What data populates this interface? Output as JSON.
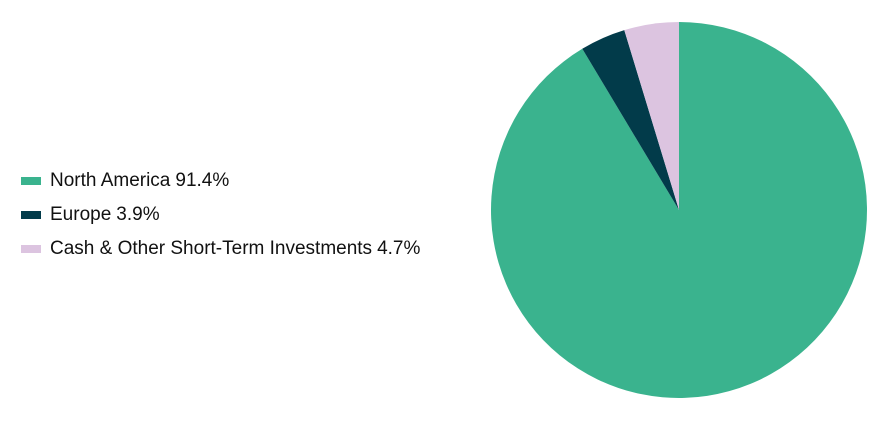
{
  "chart_data": {
    "type": "pie",
    "categories": [
      "North America",
      "Europe",
      "Cash & Other Short-Term Investments"
    ],
    "values": [
      91.4,
      3.9,
      4.7
    ],
    "value_labels": [
      "91.4%",
      "3.9%",
      "4.7%"
    ],
    "colors": [
      "#3ab38e",
      "#023b4a",
      "#dcc4e0"
    ]
  }
}
